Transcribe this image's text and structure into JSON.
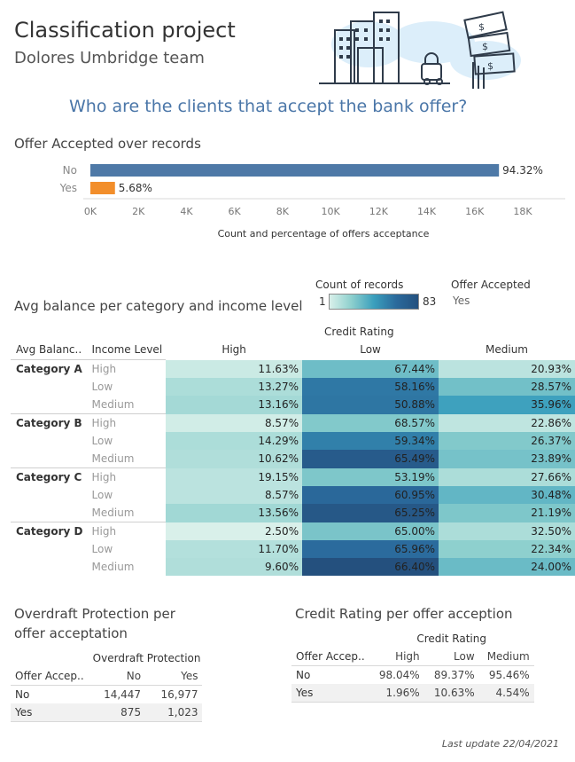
{
  "header": {
    "title": "Classification project",
    "subtitle": "Dolores Umbridge team",
    "question": "Who are the clients that accept the bank offer?"
  },
  "bar_section": {
    "title": "Offer Accepted over records",
    "xlabel": "Count and percentage of offers acceptance"
  },
  "heatmap_section": {
    "title": "Avg balance per category and income level",
    "legend_count_title": "Count of records",
    "legend_min": "1",
    "legend_max": "83",
    "legend_offer_title": "Offer Accepted",
    "legend_offer_value": "Yes",
    "col_group": "Credit Rating",
    "row_header_1": "Avg Balanc..",
    "row_header_2": "Income Level",
    "columns": [
      "High",
      "Low",
      "Medium"
    ],
    "rows": [
      {
        "cat": "Category A",
        "inc": "High",
        "vals": [
          "11.63%",
          "67.44%",
          "20.93%"
        ]
      },
      {
        "cat": "",
        "inc": "Low",
        "vals": [
          "13.27%",
          "58.16%",
          "28.57%"
        ]
      },
      {
        "cat": "",
        "inc": "Medium",
        "vals": [
          "13.16%",
          "50.88%",
          "35.96%"
        ]
      },
      {
        "cat": "Category B",
        "inc": "High",
        "vals": [
          "8.57%",
          "68.57%",
          "22.86%"
        ]
      },
      {
        "cat": "",
        "inc": "Low",
        "vals": [
          "14.29%",
          "59.34%",
          "26.37%"
        ]
      },
      {
        "cat": "",
        "inc": "Medium",
        "vals": [
          "10.62%",
          "65.49%",
          "23.89%"
        ]
      },
      {
        "cat": "Category C",
        "inc": "High",
        "vals": [
          "19.15%",
          "53.19%",
          "27.66%"
        ]
      },
      {
        "cat": "",
        "inc": "Low",
        "vals": [
          "8.57%",
          "60.95%",
          "30.48%"
        ]
      },
      {
        "cat": "",
        "inc": "Medium",
        "vals": [
          "13.56%",
          "65.25%",
          "21.19%"
        ]
      },
      {
        "cat": "Category D",
        "inc": "High",
        "vals": [
          "2.50%",
          "65.00%",
          "32.50%"
        ]
      },
      {
        "cat": "",
        "inc": "Low",
        "vals": [
          "11.70%",
          "65.96%",
          "22.34%"
        ]
      },
      {
        "cat": "",
        "inc": "Medium",
        "vals": [
          "9.60%",
          "66.40%",
          "24.00%"
        ]
      }
    ]
  },
  "overdraft_table": {
    "title_line1": "Overdraft Protection per",
    "title_line2": "offer acceptation",
    "col_group": "Overdraft Protection",
    "row_header": "Offer Accep..",
    "columns": [
      "No",
      "Yes"
    ],
    "rows": [
      {
        "label": "No",
        "vals": [
          "14,447",
          "16,977"
        ]
      },
      {
        "label": "Yes",
        "vals": [
          "875",
          "1,023"
        ]
      }
    ]
  },
  "credit_table": {
    "title": "Credit Rating per offer acception",
    "col_group": "Credit Rating",
    "row_header": "Offer Accep..",
    "columns": [
      "High",
      "Low",
      "Medium"
    ],
    "rows": [
      {
        "label": "No",
        "vals": [
          "98.04%",
          "89.37%",
          "95.46%"
        ]
      },
      {
        "label": "Yes",
        "vals": [
          "1.96%",
          "10.63%",
          "4.54%"
        ]
      }
    ]
  },
  "footer": {
    "text": "Last update 22/04/2021"
  },
  "colors": {
    "bar_no": "#4e79a7",
    "bar_yes": "#f28e2b",
    "accent": "#4a76a8"
  },
  "icons": {
    "header_illustration": "city-bank-money-icon"
  },
  "chart_data": [
    {
      "type": "bar",
      "orientation": "horizontal",
      "categories": [
        "No",
        "Yes"
      ],
      "values": [
        17011,
        1024
      ],
      "labels": [
        "94.32%",
        "5.68%"
      ],
      "colors": [
        "#4e79a7",
        "#f28e2b"
      ],
      "title": "Offer Accepted over records",
      "xlabel": "Count and percentage of offers acceptance",
      "xlim": [
        0,
        18000
      ],
      "xticks": [
        "0K",
        "2K",
        "4K",
        "6K",
        "8K",
        "10K",
        "12K",
        "14K",
        "16K",
        "18K"
      ],
      "xtick_values": [
        0,
        2000,
        4000,
        6000,
        8000,
        10000,
        12000,
        14000,
        16000,
        18000
      ],
      "grid": false
    },
    {
      "type": "heatmap",
      "title": "Avg balance per category and income level",
      "color_measure": "Count of records",
      "color_range": [
        1,
        83
      ],
      "color_legend": "right",
      "x_group": "Credit Rating",
      "x": [
        "High",
        "Low",
        "Medium"
      ],
      "y": [
        "Category A / High",
        "Category A / Low",
        "Category A / Medium",
        "Category B / High",
        "Category B / Low",
        "Category B / Medium",
        "Category C / High",
        "Category C / Low",
        "Category C / Medium",
        "Category D / High",
        "Category D / Low",
        "Category D / Medium"
      ],
      "counts": [
        [
          5,
          29,
          9
        ],
        [
          13,
          57,
          28
        ],
        [
          15,
          58,
          41
        ],
        [
          3,
          24,
          8
        ],
        [
          13,
          54,
          24
        ],
        [
          12,
          74,
          27
        ],
        [
          9,
          25,
          13
        ],
        [
          9,
          64,
          32
        ],
        [
          16,
          77,
          25
        ],
        [
          1,
          26,
          13
        ],
        [
          11,
          62,
          21
        ],
        [
          12,
          83,
          30
        ]
      ]
    }
  ]
}
